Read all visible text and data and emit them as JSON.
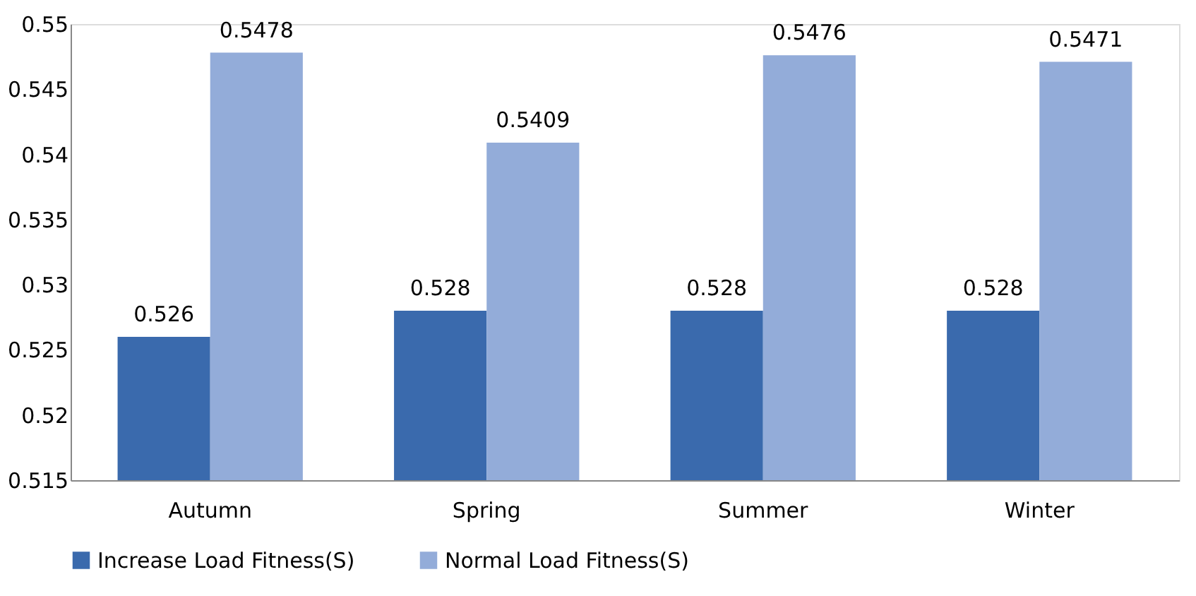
{
  "chart_data": {
    "type": "bar",
    "categories": [
      "Autumn",
      "Spring",
      "Summer",
      "Winter"
    ],
    "series": [
      {
        "name": "Increase  Load Fitness(S)",
        "color": "#3a6aad",
        "values": [
          0.526,
          0.528,
          0.528,
          0.528
        ]
      },
      {
        "name": "Normal  Load Fitness(S)",
        "color": "#93acd9",
        "values": [
          0.5478,
          0.5409,
          0.5476,
          0.5471
        ]
      }
    ],
    "ylim": [
      0.515,
      0.55
    ],
    "yticks": [
      0.515,
      0.52,
      0.525,
      0.53,
      0.535,
      0.54,
      0.545,
      0.55
    ],
    "data_labels": true,
    "grid": false,
    "legend": "bottom"
  }
}
